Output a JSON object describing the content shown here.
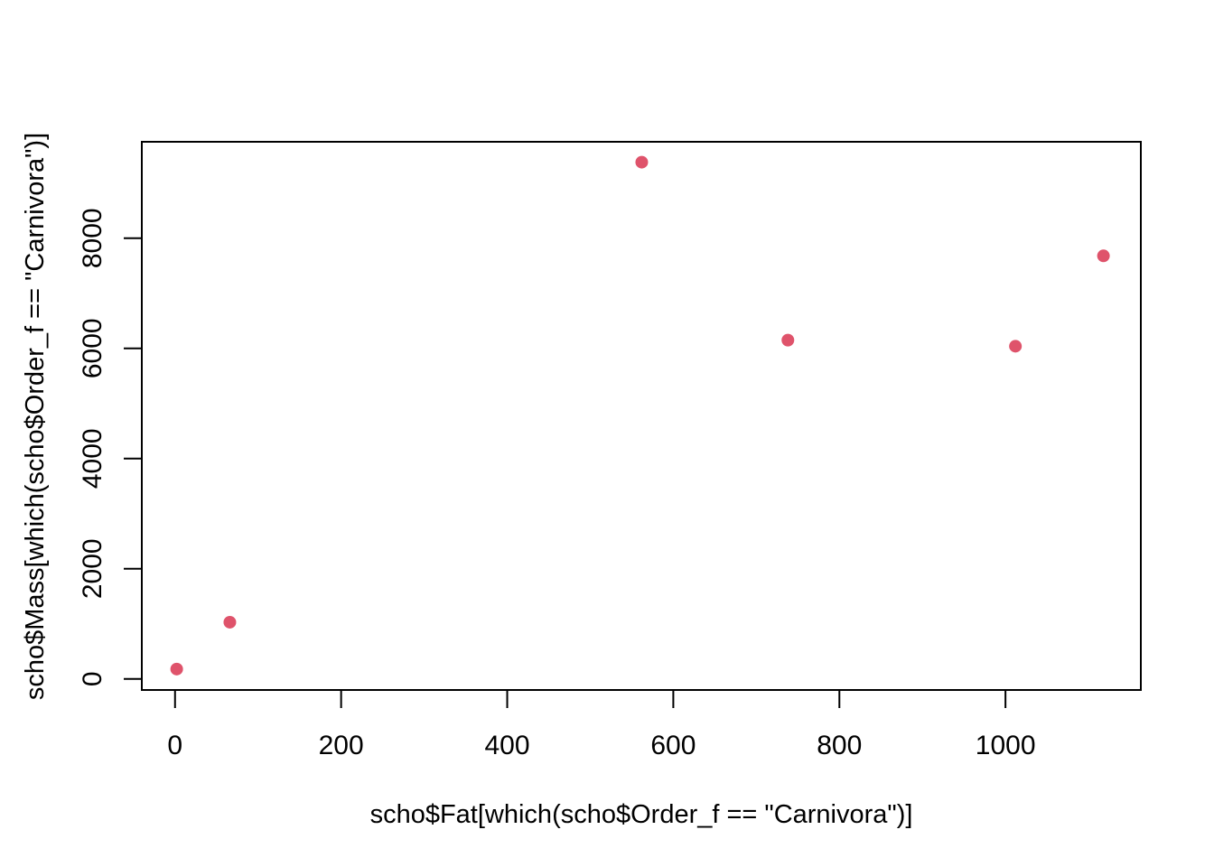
{
  "chart_data": {
    "type": "scatter",
    "xlabel": "scho$Fat[which(scho$Order_f == \"Carnivora\")]",
    "ylabel": "scho$Mass[which(scho$Order_f == \"Carnivora\")]",
    "xlim": [
      -40,
      1163
    ],
    "ylim": [
      -200,
      9750
    ],
    "xticks": [
      0,
      200,
      400,
      600,
      800,
      1000
    ],
    "yticks": [
      0,
      2000,
      4000,
      6000,
      8000
    ],
    "grid": false,
    "legend": "none",
    "point_color": "#DF536B",
    "points": [
      {
        "x": 2,
        "y": 180
      },
      {
        "x": 66,
        "y": 1030
      },
      {
        "x": 562,
        "y": 9380
      },
      {
        "x": 738,
        "y": 6150
      },
      {
        "x": 1012,
        "y": 6040
      },
      {
        "x": 1118,
        "y": 7680
      }
    ]
  }
}
